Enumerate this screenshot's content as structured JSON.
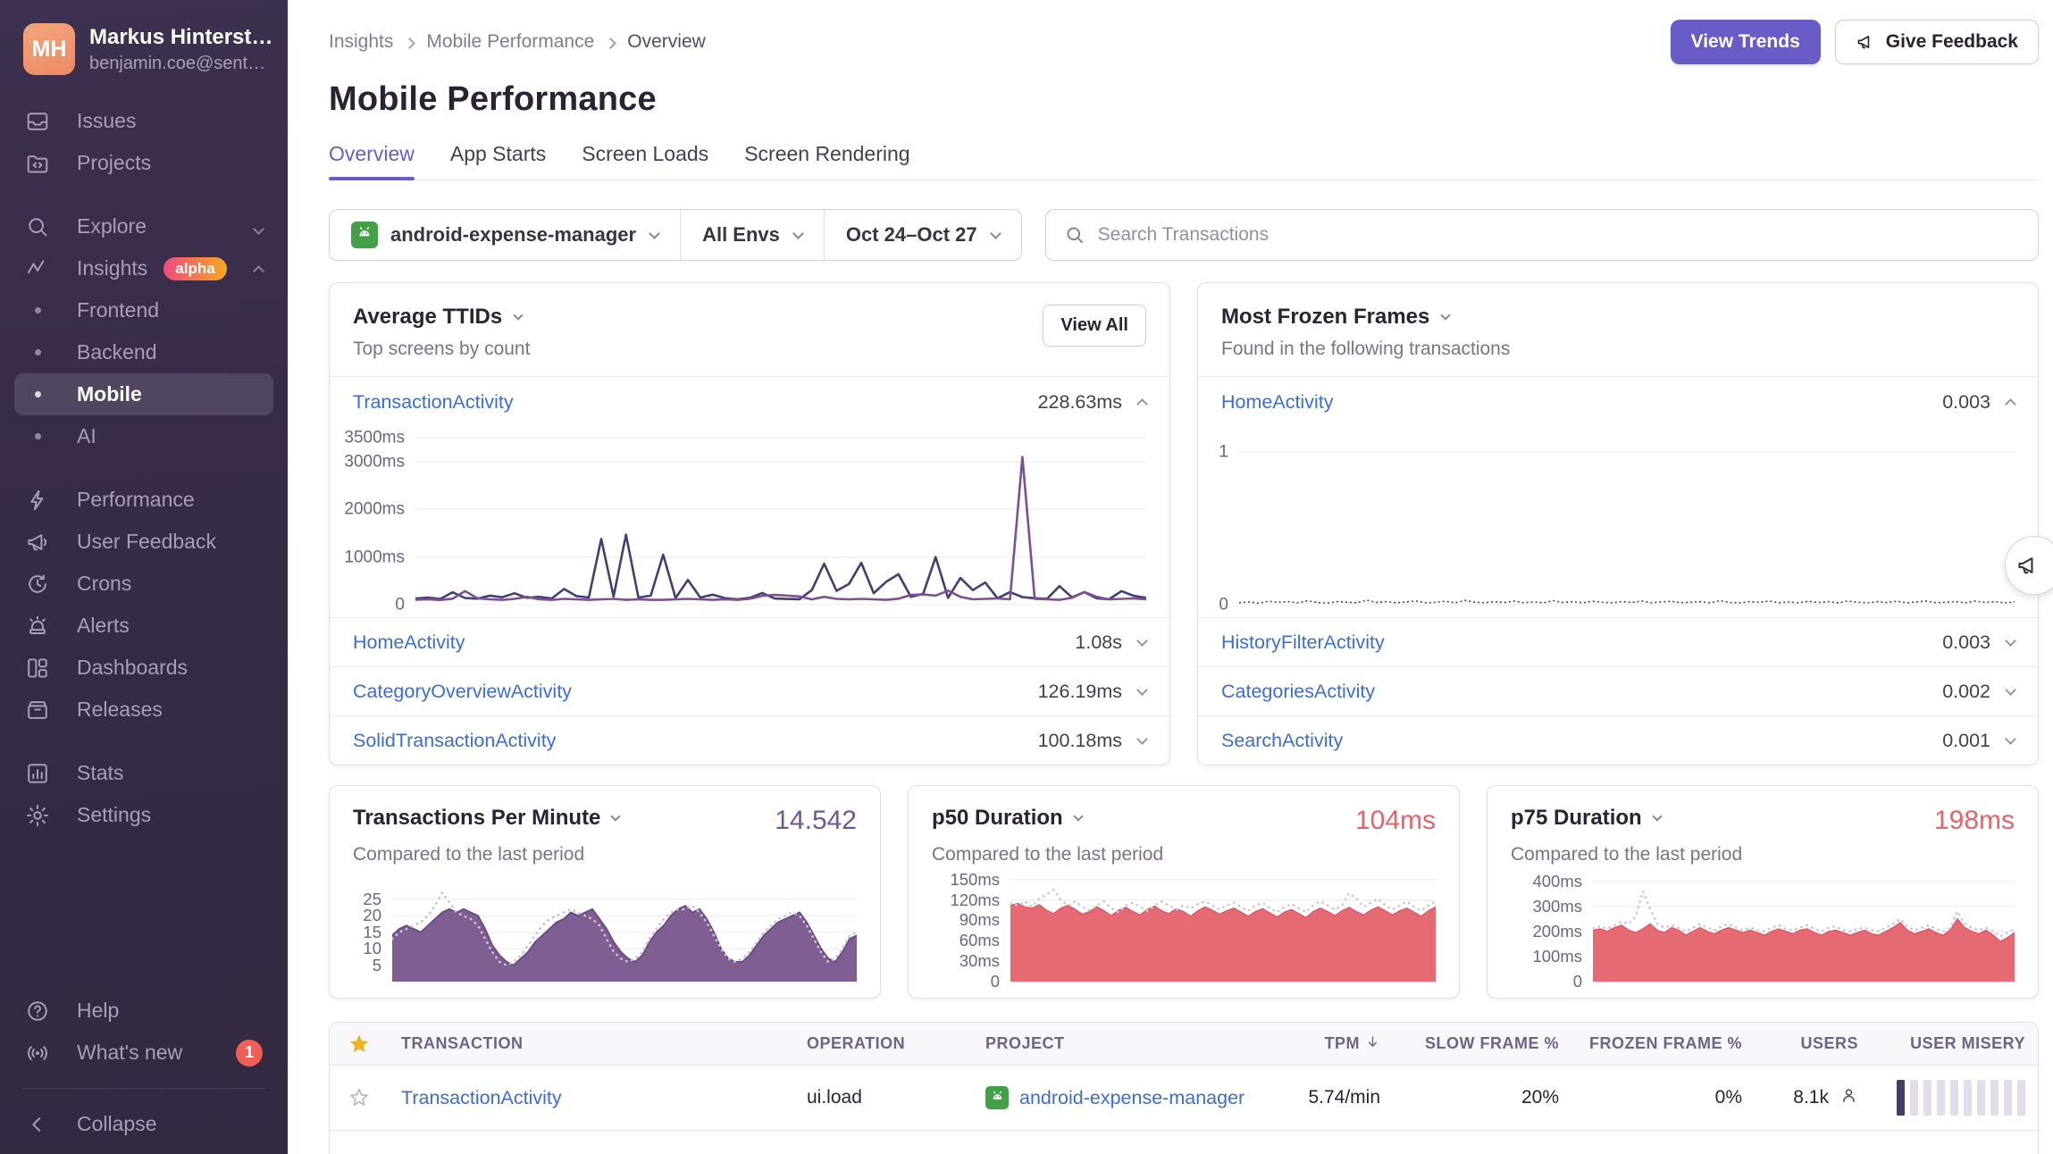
{
  "sidebar": {
    "user": {
      "initials": "MH",
      "name": "Markus Hinterst…",
      "email": "benjamin.coe@sent…"
    },
    "items": {
      "issues": "Issues",
      "projects": "Projects",
      "explore": "Explore",
      "insights": "Insights",
      "insights_badge": "alpha",
      "frontend": "Frontend",
      "backend": "Backend",
      "mobile": "Mobile",
      "ai": "AI",
      "performance": "Performance",
      "user_feedback": "User Feedback",
      "crons": "Crons",
      "alerts": "Alerts",
      "dashboards": "Dashboards",
      "releases": "Releases",
      "stats": "Stats",
      "settings": "Settings",
      "help": "Help",
      "whats_new": "What's new",
      "whats_new_badge": "1",
      "collapse": "Collapse"
    }
  },
  "header": {
    "breadcrumbs": [
      "Insights",
      "Mobile Performance",
      "Overview"
    ],
    "title": "Mobile Performance",
    "actions": {
      "view_trends": "View Trends",
      "give_feedback": "Give Feedback"
    }
  },
  "tabs": {
    "overview": "Overview",
    "app_starts": "App Starts",
    "screen_loads": "Screen Loads",
    "screen_rendering": "Screen Rendering"
  },
  "filters": {
    "project": "android-expense-manager",
    "environment": "All Envs",
    "date_range": "Oct 24–Oct 27",
    "search_placeholder": "Search Transactions"
  },
  "ttid_card": {
    "title": "Average TTIDs",
    "subtitle": "Top screens by count",
    "view_all": "View All",
    "expanded": {
      "name": "TransactionActivity",
      "value": "228.63ms"
    },
    "rows": [
      {
        "name": "HomeActivity",
        "value": "1.08s"
      },
      {
        "name": "CategoryOverviewActivity",
        "value": "126.19ms"
      },
      {
        "name": "SolidTransactionActivity",
        "value": "100.18ms"
      }
    ]
  },
  "frozen_card": {
    "title": "Most Frozen Frames",
    "subtitle": "Found in the following transactions",
    "expanded": {
      "name": "HomeActivity",
      "value": "0.003"
    },
    "rows": [
      {
        "name": "HistoryFilterActivity",
        "value": "0.003"
      },
      {
        "name": "CategoriesActivity",
        "value": "0.002"
      },
      {
        "name": "SearchActivity",
        "value": "0.001"
      }
    ]
  },
  "metric_cards": {
    "tpm": {
      "title": "Transactions Per Minute",
      "value": "14.542",
      "subtitle": "Compared to the last period"
    },
    "p50": {
      "title": "p50 Duration",
      "value": "104ms",
      "subtitle": "Compared to the last period"
    },
    "p75": {
      "title": "p75 Duration",
      "value": "198ms",
      "subtitle": "Compared to the last period"
    }
  },
  "table": {
    "headers": {
      "transaction": "TRANSACTION",
      "operation": "OPERATION",
      "project": "PROJECT",
      "tpm": "TPM",
      "slow": "SLOW FRAME %",
      "frozen": "FROZEN FRAME %",
      "users": "USERS",
      "misery": "USER MISERY"
    },
    "rows": [
      {
        "transaction": "TransactionActivity",
        "operation": "ui.load",
        "project": "android-expense-manager",
        "tpm": "5.74/min",
        "slow": "20%",
        "frozen": "0%",
        "users": "8.1k",
        "misery": {
          "filled": 1,
          "total": 10
        }
      }
    ]
  },
  "colors": {
    "accent_purple": "#6a5cc8",
    "link_blue": "#3a6ce0",
    "chart_navy": "#433e75",
    "chart_purple": "#7e4f92",
    "chart_coral": "#e5656e",
    "chart_prev_dotted": "#c9c2d3",
    "sidebar_bg": "#372c47",
    "badge_red": "#ef5f57",
    "android_green": "#43A047"
  },
  "chart_data": {
    "ttid": {
      "type": "line",
      "title": "Average TTIDs — TransactionActivity",
      "ylim": [
        0,
        3600
      ],
      "grid": true,
      "yticks": [
        {
          "label": "3500ms",
          "value": 3500
        },
        {
          "label": "3000ms",
          "value": 3000
        },
        {
          "label": "2000ms",
          "value": 2000
        },
        {
          "label": "1000ms",
          "value": 1000
        },
        {
          "label": "0",
          "value": 0
        }
      ],
      "series": [
        {
          "name": "current-navy",
          "color": "#433e75",
          "width": 2.6,
          "values": [
            130,
            150,
            120,
            260,
            140,
            125,
            190,
            155,
            240,
            145,
            165,
            130,
            330,
            180,
            150,
            1380,
            170,
            1470,
            150,
            190,
            1050,
            140,
            520,
            150,
            210,
            135,
            115,
            145,
            245,
            130,
            120,
            115,
            305,
            860,
            290,
            435,
            880,
            240,
            480,
            640,
            165,
            230,
            1000,
            145,
            560,
            305,
            465,
            135,
            265,
            160,
            135,
            125,
            390,
            155,
            265,
            135,
            115,
            285,
            185,
            145
          ]
        },
        {
          "name": "current-purple",
          "color": "#7e4f92",
          "width": 2.6,
          "values": [
            105,
            115,
            100,
            125,
            285,
            135,
            112,
            102,
            122,
            165,
            112,
            102,
            122,
            112,
            102,
            112,
            122,
            102,
            112,
            102,
            102,
            112,
            122,
            112,
            102,
            112,
            102,
            125,
            185,
            205,
            192,
            172,
            112,
            165,
            122,
            112,
            122,
            112,
            102,
            125,
            205,
            215,
            192,
            295,
            165,
            112,
            122,
            132,
            112,
            3100,
            122,
            112,
            102,
            145,
            265,
            165,
            112,
            122,
            132,
            112
          ]
        }
      ]
    },
    "frozen": {
      "type": "line",
      "title": "Most Frozen Frames — HomeActivity",
      "ylim": [
        0,
        1.12
      ],
      "grid": true,
      "yticks": [
        {
          "label": "1",
          "value": 1
        },
        {
          "label": "0",
          "value": 0
        }
      ],
      "series": [
        {
          "name": "current",
          "color": "#433e75",
          "width": 1.6,
          "dash": "2 3",
          "values": [
            0.012,
            0.018,
            0.01,
            0.022,
            0.015,
            0.02,
            0.012,
            0.025,
            0.014,
            0.01,
            0.02,
            0.016,
            0.012,
            0.03,
            0.014,
            0.02,
            0.012,
            0.018,
            0.024,
            0.012,
            0.016,
            0.022,
            0.012,
            0.028,
            0.016,
            0.012,
            0.02,
            0.014,
            0.024,
            0.012,
            0.018,
            0.012,
            0.026,
            0.014,
            0.02,
            0.012,
            0.022,
            0.016,
            0.012,
            0.02,
            0.014,
            0.024,
            0.012,
            0.018,
            0.022,
            0.012,
            0.016,
            0.02,
            0.012,
            0.026,
            0.014,
            0.012,
            0.02,
            0.016,
            0.024,
            0.012,
            0.018,
            0.012,
            0.022,
            0.014,
            0.02,
            0.012,
            0.024,
            0.016,
            0.012,
            0.02,
            0.014,
            0.022,
            0.012,
            0.018,
            0.024,
            0.012,
            0.016,
            0.02,
            0.012,
            0.024,
            0.014,
            0.02,
            0.012,
            0.018
          ]
        }
      ]
    },
    "tpm": {
      "type": "area",
      "title": "Transactions Per Minute",
      "ylim": [
        0,
        32
      ],
      "grid": true,
      "yticks": [
        {
          "label": "25",
          "value": 25
        },
        {
          "label": "20",
          "value": 20
        },
        {
          "label": "15",
          "value": 15
        },
        {
          "label": "10",
          "value": 10
        },
        {
          "label": "5",
          "value": 5
        }
      ],
      "series": [
        {
          "name": "current",
          "color": "#7a5790",
          "fill": true,
          "fill_opacity": 0.96,
          "stroke": "#6d4b85",
          "width": 2,
          "values": [
            14,
            16,
            17,
            16,
            15,
            17,
            19,
            21,
            22,
            21,
            22,
            21,
            20,
            16,
            11,
            8,
            6,
            5,
            7,
            9,
            12,
            14,
            16,
            18,
            19,
            21,
            20,
            21,
            22,
            19,
            16,
            12,
            9,
            7,
            6,
            8,
            12,
            15,
            17,
            20,
            22,
            23,
            21,
            22,
            19,
            15,
            10,
            7,
            6,
            6,
            8,
            11,
            14,
            16,
            18,
            19,
            20,
            21,
            18,
            14,
            10,
            7,
            6,
            9,
            13,
            14
          ]
        },
        {
          "name": "previous",
          "color": "#c9c2d3",
          "style": "dotted",
          "values": [
            13,
            15,
            16,
            17,
            18,
            20,
            23,
            27,
            24,
            21,
            20,
            19,
            17,
            13,
            9,
            6,
            5,
            6,
            8,
            11,
            14,
            17,
            19,
            20,
            21,
            22,
            21,
            20,
            19,
            17,
            13,
            9,
            7,
            6,
            7,
            9,
            13,
            16,
            19,
            21,
            22,
            22,
            23,
            21,
            18,
            14,
            10,
            7,
            6,
            7,
            9,
            12,
            15,
            17,
            19,
            20,
            21,
            20,
            17,
            13,
            9,
            6,
            7,
            10,
            14,
            15
          ]
        }
      ]
    },
    "p50": {
      "type": "area",
      "title": "p50 Duration",
      "ylim": [
        0,
        155
      ],
      "grid": true,
      "yticks": [
        {
          "label": "150ms",
          "value": 150
        },
        {
          "label": "120ms",
          "value": 120
        },
        {
          "label": "90ms",
          "value": 90
        },
        {
          "label": "60ms",
          "value": 60
        },
        {
          "label": "30ms",
          "value": 30
        },
        {
          "label": "0",
          "value": 0
        }
      ],
      "series": [
        {
          "name": "current",
          "color": "#e5656e",
          "fill": true,
          "fill_opacity": 0.97,
          "stroke": "#e25a64",
          "width": 1.5,
          "values": [
            112,
            115,
            110,
            108,
            113,
            105,
            100,
            108,
            112,
            106,
            99,
            103,
            110,
            104,
            97,
            105,
            109,
            103,
            98,
            106,
            111,
            104,
            100,
            107,
            103,
            96,
            104,
            110,
            105,
            99,
            104,
            108,
            102,
            96,
            103,
            107,
            101,
            95,
            102,
            106,
            100,
            94,
            103,
            108,
            103,
            97,
            104,
            109,
            103,
            98,
            105,
            110,
            104,
            98,
            104,
            108,
            102,
            96,
            104,
            110
          ]
        },
        {
          "name": "previous",
          "color": "#cfc8d8",
          "style": "dotted",
          "values": [
            116,
            112,
            118,
            110,
            122,
            128,
            135,
            120,
            112,
            118,
            110,
            105,
            112,
            118,
            108,
            102,
            112,
            116,
            110,
            104,
            112,
            118,
            112,
            106,
            112,
            108,
            114,
            118,
            112,
            106,
            112,
            116,
            110,
            104,
            112,
            116,
            108,
            102,
            110,
            114,
            108,
            102,
            112,
            118,
            112,
            106,
            112,
            130,
            122,
            110,
            116,
            122,
            112,
            106,
            112,
            118,
            110,
            104,
            112,
            118
          ]
        }
      ]
    },
    "p75": {
      "type": "area",
      "title": "p75 Duration",
      "ylim": [
        0,
        420
      ],
      "grid": true,
      "yticks": [
        {
          "label": "400ms",
          "value": 400
        },
        {
          "label": "300ms",
          "value": 300
        },
        {
          "label": "200ms",
          "value": 200
        },
        {
          "label": "100ms",
          "value": 100
        },
        {
          "label": "0",
          "value": 0
        }
      ],
      "series": [
        {
          "name": "current",
          "color": "#e5656e",
          "fill": true,
          "fill_opacity": 0.97,
          "stroke": "#e25a64",
          "width": 1.5,
          "values": [
            205,
            210,
            200,
            215,
            225,
            205,
            195,
            210,
            230,
            205,
            195,
            215,
            205,
            185,
            200,
            215,
            200,
            190,
            205,
            215,
            205,
            195,
            205,
            195,
            185,
            200,
            210,
            200,
            190,
            205,
            210,
            195,
            185,
            200,
            205,
            195,
            185,
            195,
            205,
            190,
            185,
            200,
            215,
            235,
            205,
            190,
            200,
            210,
            195,
            185,
            205,
            250,
            215,
            200,
            190,
            205,
            185,
            160,
            175,
            195
          ]
        },
        {
          "name": "previous",
          "color": "#cfc8d8",
          "style": "dotted",
          "values": [
            215,
            220,
            210,
            225,
            240,
            230,
            260,
            360,
            290,
            230,
            215,
            225,
            215,
            200,
            215,
            230,
            215,
            205,
            220,
            230,
            215,
            205,
            215,
            205,
            200,
            215,
            225,
            210,
            205,
            215,
            225,
            210,
            200,
            215,
            220,
            205,
            200,
            210,
            215,
            205,
            200,
            215,
            230,
            250,
            220,
            205,
            215,
            225,
            210,
            200,
            215,
            280,
            230,
            215,
            205,
            215,
            200,
            180,
            195,
            210
          ]
        }
      ]
    }
  }
}
